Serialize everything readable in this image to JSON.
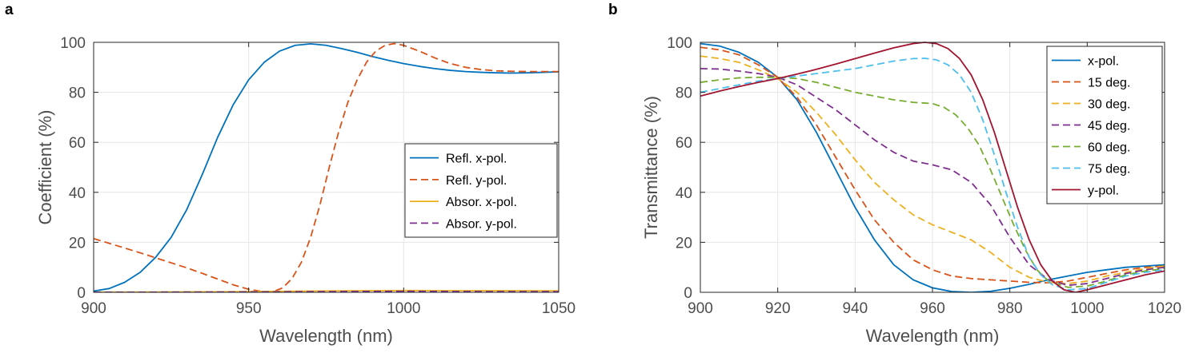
{
  "chart_data": [
    {
      "panel_label": "a",
      "type": "line",
      "xlabel": "Wavelength (nm)",
      "ylabel": "Coefficient (%)",
      "xlim": [
        900,
        1050
      ],
      "ylim": [
        0,
        100
      ],
      "xticks": [
        900,
        950,
        1000,
        1050
      ],
      "yticks": [
        0,
        20,
        40,
        60,
        80,
        100
      ],
      "grid": true,
      "legend_position": "center-right",
      "series": [
        {
          "name": "Refl. x-pol.",
          "color": "#0072BD",
          "dash": "solid",
          "x": [
            900,
            905,
            910,
            915,
            920,
            925,
            930,
            935,
            940,
            945,
            950,
            955,
            960,
            965,
            970,
            975,
            980,
            985,
            990,
            995,
            1000,
            1005,
            1010,
            1015,
            1020,
            1025,
            1030,
            1035,
            1040,
            1045,
            1050
          ],
          "y": [
            0.5,
            1.5,
            4,
            8,
            14,
            22,
            33,
            47,
            62,
            75,
            85,
            92,
            96.5,
            98.8,
            99.4,
            98.8,
            97.5,
            96,
            94.3,
            92.8,
            91.5,
            90.4,
            89.5,
            88.8,
            88.3,
            88,
            87.8,
            87.7,
            87.8,
            88,
            88.2
          ]
        },
        {
          "name": "Refl. y-pol.",
          "color": "#D95319",
          "dash": "dashed",
          "x": [
            900,
            905,
            910,
            915,
            920,
            925,
            930,
            935,
            940,
            945,
            950,
            955,
            958,
            961,
            964,
            967,
            970,
            973,
            976,
            979,
            982,
            985,
            988,
            991,
            994,
            997,
            1000,
            1005,
            1010,
            1015,
            1020,
            1025,
            1030,
            1035,
            1040,
            1045,
            1050
          ],
          "y": [
            21.5,
            19.6,
            17.7,
            15.8,
            13.8,
            11.8,
            9.8,
            7.6,
            5.3,
            3,
            1.2,
            0.2,
            0.3,
            1.8,
            5.5,
            12,
            22,
            35,
            50,
            64,
            76,
            85,
            92,
            96.5,
            98.8,
            99.5,
            98.8,
            96.5,
            93.8,
            91.5,
            90,
            89.1,
            88.6,
            88.4,
            88.3,
            88.3,
            88.3
          ]
        },
        {
          "name": "Absor. x-pol.",
          "color": "#EDB120",
          "dash": "solid",
          "x": [
            900,
            920,
            940,
            960,
            980,
            1000,
            1020,
            1050
          ],
          "y": [
            0.05,
            0.1,
            0.2,
            0.4,
            0.6,
            0.7,
            0.65,
            0.6
          ]
        },
        {
          "name": "Absor. y-pol.",
          "color": "#7E2F8E",
          "dash": "dashed",
          "x": [
            900,
            920,
            940,
            960,
            980,
            1000,
            1020,
            1050
          ],
          "y": [
            0.05,
            0.05,
            0.1,
            0.2,
            0.3,
            0.4,
            0.3,
            0.25
          ]
        }
      ]
    },
    {
      "panel_label": "b",
      "type": "line",
      "xlabel": "Wavelength (nm)",
      "ylabel": "Transmittance (%)",
      "xlim": [
        900,
        1020
      ],
      "ylim": [
        0,
        100
      ],
      "xticks": [
        900,
        920,
        940,
        960,
        980,
        1000,
        1020
      ],
      "yticks": [
        0,
        20,
        40,
        60,
        80,
        100
      ],
      "grid": true,
      "legend_position": "top-right",
      "series": [
        {
          "name": "x-pol.",
          "color": "#0072BD",
          "dash": "solid",
          "x": [
            900,
            905,
            910,
            915,
            920,
            925,
            930,
            935,
            940,
            945,
            950,
            955,
            960,
            965,
            970,
            975,
            980,
            985,
            990,
            995,
            1000,
            1005,
            1010,
            1015,
            1020
          ],
          "y": [
            99.5,
            98.5,
            96,
            92,
            86,
            77,
            64,
            49,
            34,
            21,
            11,
            5,
            1.8,
            0.3,
            0,
            0.4,
            1.6,
            3.2,
            5,
            6.5,
            8,
            9,
            10,
            10.5,
            11
          ]
        },
        {
          "name": "15 deg.",
          "color": "#D95319",
          "dash": "dashed",
          "x": [
            900,
            905,
            910,
            915,
            920,
            925,
            930,
            935,
            940,
            945,
            950,
            955,
            960,
            965,
            970,
            975,
            980,
            985,
            990,
            995,
            1000,
            1005,
            1010,
            1015,
            1020
          ],
          "y": [
            98,
            97,
            95,
            91,
            86,
            78,
            67,
            54,
            41,
            29,
            20,
            13,
            9,
            6.5,
            5.5,
            5,
            4.5,
            4,
            3.8,
            4.5,
            6,
            7.5,
            9,
            10,
            10.5
          ]
        },
        {
          "name": "30 deg.",
          "color": "#EDB120",
          "dash": "dashed",
          "x": [
            900,
            905,
            910,
            915,
            920,
            925,
            930,
            935,
            940,
            945,
            950,
            955,
            960,
            965,
            970,
            975,
            980,
            985,
            990,
            995,
            1000,
            1005,
            1010,
            1015,
            1020
          ],
          "y": [
            94.5,
            93.5,
            92,
            89,
            85.5,
            80,
            72,
            63,
            53,
            44,
            37,
            31,
            27,
            24,
            21,
            16,
            10,
            6,
            4,
            3.5,
            4.5,
            6.5,
            8,
            9.5,
            10.5
          ]
        },
        {
          "name": "45 deg.",
          "color": "#7E2F8E",
          "dash": "dashed",
          "x": [
            900,
            905,
            910,
            915,
            920,
            925,
            930,
            935,
            940,
            945,
            950,
            955,
            960,
            965,
            970,
            975,
            980,
            985,
            990,
            995,
            1000,
            1005,
            1010,
            1015,
            1020
          ],
          "y": [
            89.5,
            89.3,
            88.5,
            87.5,
            86,
            83,
            78,
            73,
            67,
            61,
            56,
            52.5,
            51,
            49,
            44,
            35,
            22,
            11,
            5,
            2.8,
            3.5,
            5.5,
            7.5,
            9,
            10
          ]
        },
        {
          "name": "60 deg.",
          "color": "#77AC30",
          "dash": "dashed",
          "x": [
            900,
            905,
            910,
            915,
            920,
            925,
            930,
            935,
            940,
            945,
            950,
            955,
            960,
            963,
            966,
            969,
            972,
            975,
            978,
            981,
            984,
            987,
            990,
            995,
            1000,
            1005,
            1010,
            1015,
            1020
          ],
          "y": [
            84,
            85,
            85.8,
            86,
            86,
            85.5,
            84,
            82,
            80,
            78.5,
            77,
            76,
            75.5,
            74,
            71,
            66,
            59,
            49,
            38,
            27,
            17,
            9,
            4.5,
            2,
            2.5,
            4.5,
            7,
            8.5,
            9.5
          ]
        },
        {
          "name": "75 deg.",
          "color": "#4DBEEE",
          "dash": "dashed",
          "x": [
            900,
            905,
            910,
            915,
            920,
            925,
            930,
            935,
            940,
            945,
            950,
            955,
            958,
            961,
            964,
            967,
            970,
            973,
            976,
            979,
            982,
            985,
            988,
            991,
            995,
            1000,
            1005,
            1010,
            1015,
            1020
          ],
          "y": [
            80,
            81.5,
            83,
            84.5,
            85.5,
            86.5,
            87.5,
            88.5,
            89.5,
            91,
            92.5,
            93.5,
            93.6,
            93,
            91,
            87,
            80,
            69,
            55,
            40,
            26,
            14,
            7,
            3,
            1,
            1.5,
            4,
            6.5,
            8,
            9
          ]
        },
        {
          "name": "y-pol.",
          "color": "#A2142F",
          "dash": "solid",
          "x": [
            900,
            905,
            910,
            915,
            920,
            925,
            930,
            935,
            940,
            945,
            950,
            955,
            958,
            961,
            964,
            967,
            970,
            973,
            976,
            979,
            982,
            985,
            988,
            991,
            994,
            997,
            1000,
            1005,
            1010,
            1015,
            1020
          ],
          "y": [
            78.5,
            80.5,
            82.3,
            84,
            85.5,
            87.3,
            89.2,
            91.3,
            93.5,
            95.7,
            97.8,
            99.5,
            100,
            99.5,
            97.5,
            93.5,
            87,
            77,
            64,
            49,
            34,
            21,
            11,
            4.5,
            1,
            0,
            1,
            3,
            5,
            7,
            8.5
          ]
        }
      ]
    }
  ]
}
